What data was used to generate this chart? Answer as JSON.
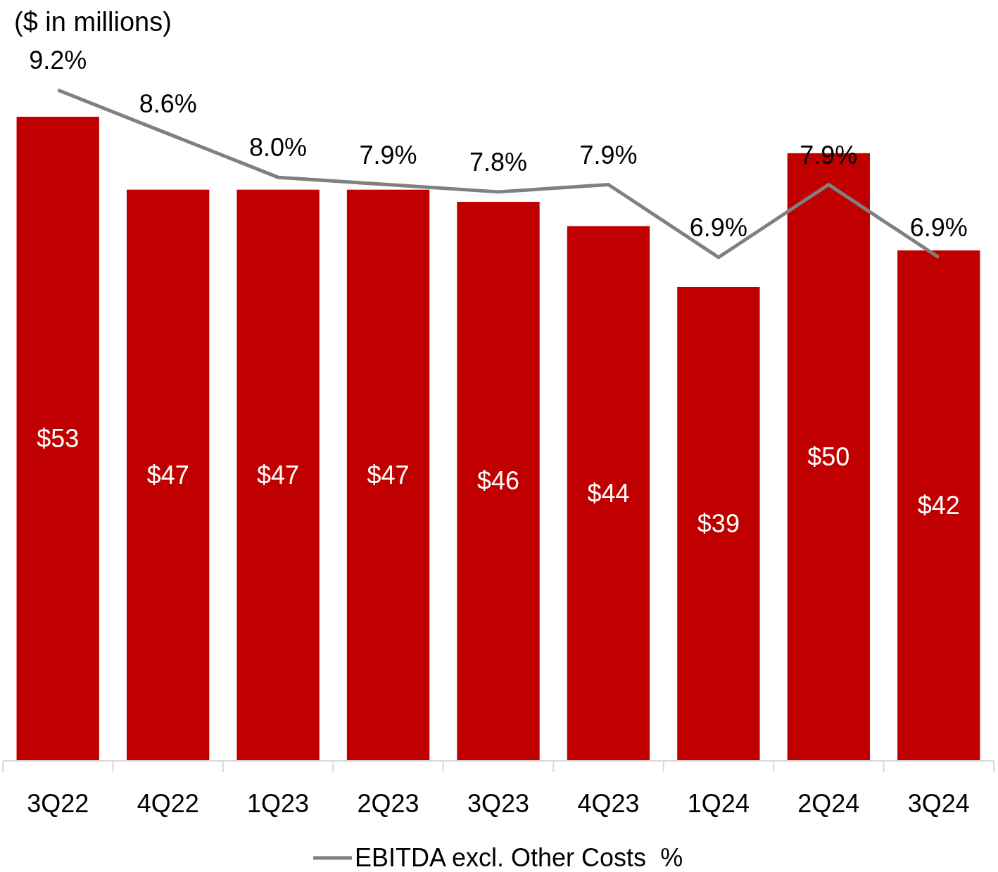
{
  "chart_data": {
    "type": "bar",
    "title": "($ in millions)",
    "categories": [
      "3Q22",
      "4Q22",
      "1Q23",
      "2Q23",
      "3Q23",
      "4Q23",
      "1Q24",
      "2Q24",
      "3Q24"
    ],
    "series": [
      {
        "color": "#c00000",
        "values": [
          53,
          47,
          47,
          47,
          46,
          44,
          39,
          50,
          42
        ],
        "value_labels": [
          "$53",
          "$47",
          "$47",
          "$47",
          "$46",
          "$44",
          "$39",
          "$50",
          "$42"
        ]
      },
      {
        "type": "line",
        "axis": "y2",
        "name": "EBITDA excl. Other Costs  %",
        "color": "#808080",
        "values": [
          9.2,
          8.6,
          8.0,
          7.9,
          7.8,
          7.9,
          6.9,
          7.9,
          6.9
        ],
        "value_labels": [
          "9.2%",
          "8.6%",
          "8.0%",
          "7.9%",
          "7.8%",
          "7.9%",
          "6.9%",
          "7.9%",
          "6.9%"
        ]
      }
    ],
    "legend": "bottom",
    "marker": "none",
    "line_style": "solid"
  }
}
